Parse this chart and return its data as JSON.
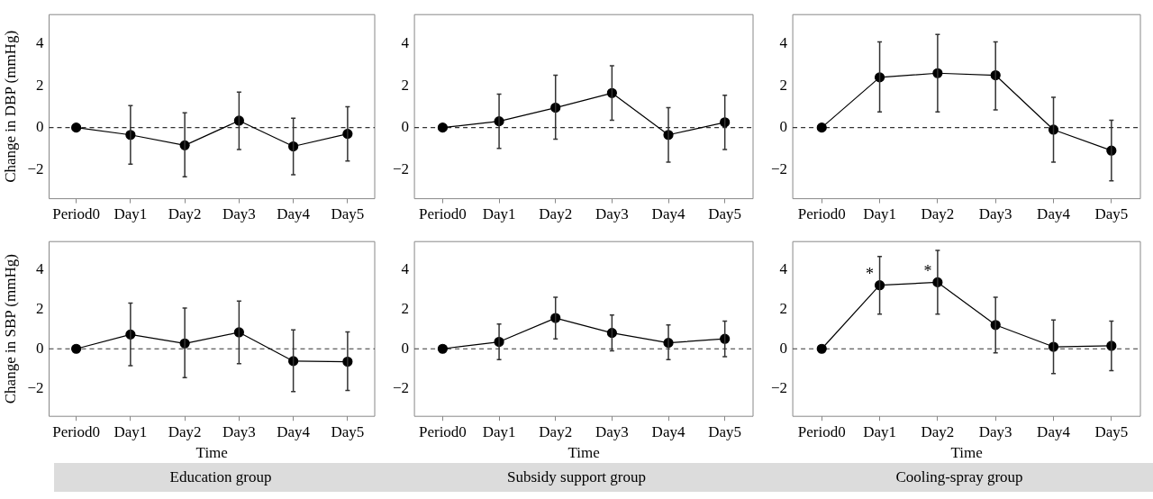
{
  "chart_data": [
    {
      "type": "line",
      "ylabel": "Change in DBP (mmHg)",
      "categories": [
        "Period0",
        "Day1",
        "Day2",
        "Day3",
        "Day4",
        "Day5"
      ],
      "ylim": [
        -3.4,
        5.4
      ],
      "yticks": [
        -2,
        0,
        2,
        4
      ],
      "grid": false,
      "marker": "circle",
      "line_style": "solid",
      "ref_lines": [
        {
          "axis": "y",
          "value": 0,
          "line_style": "dashed"
        }
      ],
      "series": [
        {
          "color": "#000000",
          "values": [
            0,
            -0.35,
            -0.85,
            0.33,
            -0.9,
            -0.3
          ],
          "errors": [
            null,
            [
              -1.75,
              1.05
            ],
            [
              -2.35,
              0.7
            ],
            [
              -1.05,
              1.7
            ],
            [
              -2.25,
              0.45
            ],
            [
              -1.6,
              1.0
            ]
          ]
        }
      ]
    },
    {
      "type": "line",
      "categories": [
        "Period0",
        "Day1",
        "Day2",
        "Day3",
        "Day4",
        "Day5"
      ],
      "ylim": [
        -3.4,
        5.4
      ],
      "yticks": [
        -2,
        0,
        2,
        4
      ],
      "grid": false,
      "marker": "circle",
      "line_style": "solid",
      "ref_lines": [
        {
          "axis": "y",
          "value": 0,
          "line_style": "dashed"
        }
      ],
      "series": [
        {
          "color": "#000000",
          "values": [
            0,
            0.3,
            0.95,
            1.65,
            -0.35,
            0.25
          ],
          "errors": [
            null,
            [
              -1.0,
              1.6
            ],
            [
              -0.55,
              2.5
            ],
            [
              0.35,
              2.95
            ],
            [
              -1.65,
              0.95
            ],
            [
              -1.05,
              1.55
            ]
          ]
        }
      ]
    },
    {
      "type": "line",
      "categories": [
        "Period0",
        "Day1",
        "Day2",
        "Day3",
        "Day4",
        "Day5"
      ],
      "ylim": [
        -3.4,
        5.4
      ],
      "yticks": [
        -2,
        0,
        2,
        4
      ],
      "grid": false,
      "marker": "circle",
      "line_style": "solid",
      "ref_lines": [
        {
          "axis": "y",
          "value": 0,
          "line_style": "dashed"
        }
      ],
      "series": [
        {
          "color": "#000000",
          "values": [
            0,
            2.4,
            2.6,
            2.5,
            -0.1,
            -1.1
          ],
          "errors": [
            null,
            [
              0.75,
              4.1
            ],
            [
              0.75,
              4.45
            ],
            [
              0.85,
              4.1
            ],
            [
              -1.65,
              1.45
            ],
            [
              -2.55,
              0.35
            ]
          ]
        }
      ]
    },
    {
      "type": "line",
      "ylabel": "Change in SBP (mmHg)",
      "xlabel": "Time",
      "annotations": [
        "Education group"
      ],
      "categories": [
        "Period0",
        "Day1",
        "Day2",
        "Day3",
        "Day4",
        "Day5"
      ],
      "ylim": [
        -3.4,
        5.4
      ],
      "yticks": [
        -2,
        0,
        2,
        4
      ],
      "grid": false,
      "marker": "circle",
      "line_style": "solid",
      "ref_lines": [
        {
          "axis": "y",
          "value": 0,
          "line_style": "dashed"
        }
      ],
      "series": [
        {
          "color": "#000000",
          "values": [
            0,
            0.72,
            0.27,
            0.83,
            -0.62,
            -0.65
          ],
          "errors": [
            null,
            [
              -0.85,
              2.3
            ],
            [
              -1.45,
              2.05
            ],
            [
              -0.75,
              2.4
            ],
            [
              -2.15,
              0.95
            ],
            [
              -2.1,
              0.85
            ]
          ]
        }
      ]
    },
    {
      "type": "line",
      "xlabel": "Time",
      "annotations": [
        "Subsidy support group"
      ],
      "categories": [
        "Period0",
        "Day1",
        "Day2",
        "Day3",
        "Day4",
        "Day5"
      ],
      "ylim": [
        -3.4,
        5.4
      ],
      "yticks": [
        -2,
        0,
        2,
        4
      ],
      "grid": false,
      "marker": "circle",
      "line_style": "solid",
      "ref_lines": [
        {
          "axis": "y",
          "value": 0,
          "line_style": "dashed"
        }
      ],
      "series": [
        {
          "color": "#000000",
          "values": [
            0,
            0.35,
            1.55,
            0.8,
            0.3,
            0.5
          ],
          "errors": [
            null,
            [
              -0.55,
              1.25
            ],
            [
              0.5,
              2.6
            ],
            [
              -0.1,
              1.7
            ],
            [
              -0.55,
              1.2
            ],
            [
              -0.4,
              1.4
            ]
          ]
        }
      ]
    },
    {
      "type": "line",
      "xlabel": "Time",
      "annotations": [
        "Cooling-spray group",
        {
          "text": "*",
          "x": "Day1",
          "y": 3.2
        },
        {
          "text": "*",
          "x": "Day2",
          "y": 3.35
        }
      ],
      "categories": [
        "Period0",
        "Day1",
        "Day2",
        "Day3",
        "Day4",
        "Day5"
      ],
      "ylim": [
        -3.4,
        5.4
      ],
      "yticks": [
        -2,
        0,
        2,
        4
      ],
      "grid": false,
      "marker": "circle",
      "line_style": "solid",
      "ref_lines": [
        {
          "axis": "y",
          "value": 0,
          "line_style": "dashed"
        }
      ],
      "series": [
        {
          "color": "#000000",
          "values": [
            0,
            3.2,
            3.35,
            1.2,
            0.1,
            0.15
          ],
          "errors": [
            null,
            [
              1.75,
              4.65
            ],
            [
              1.75,
              4.95
            ],
            [
              -0.2,
              2.6
            ],
            [
              -1.25,
              1.45
            ],
            [
              -1.1,
              1.4
            ]
          ]
        }
      ]
    }
  ]
}
